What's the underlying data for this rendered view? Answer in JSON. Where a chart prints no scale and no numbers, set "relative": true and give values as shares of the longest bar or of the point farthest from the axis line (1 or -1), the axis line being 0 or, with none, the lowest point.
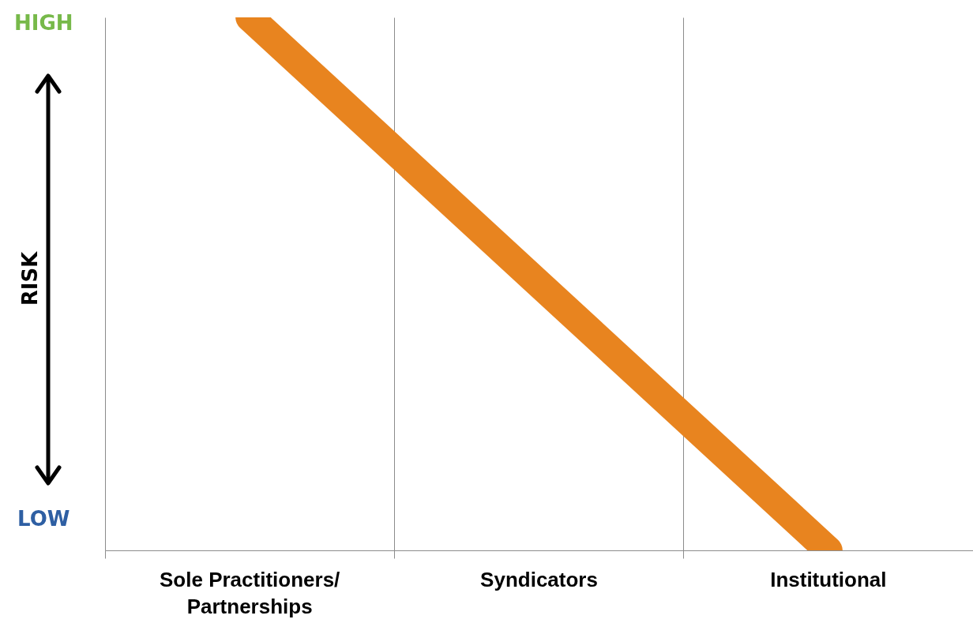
{
  "chart_data": {
    "type": "line",
    "relative": true,
    "categories": [
      "Sole Practitioners/\nPartnerships",
      "Syndicators",
      "Institutional"
    ],
    "series": [
      {
        "color": "#e8841f",
        "values": [
          1,
          0.5,
          0
        ]
      }
    ],
    "ylabel": "RISK",
    "annotations": [
      "HIGH",
      "LOW"
    ],
    "grid": "x"
  }
}
